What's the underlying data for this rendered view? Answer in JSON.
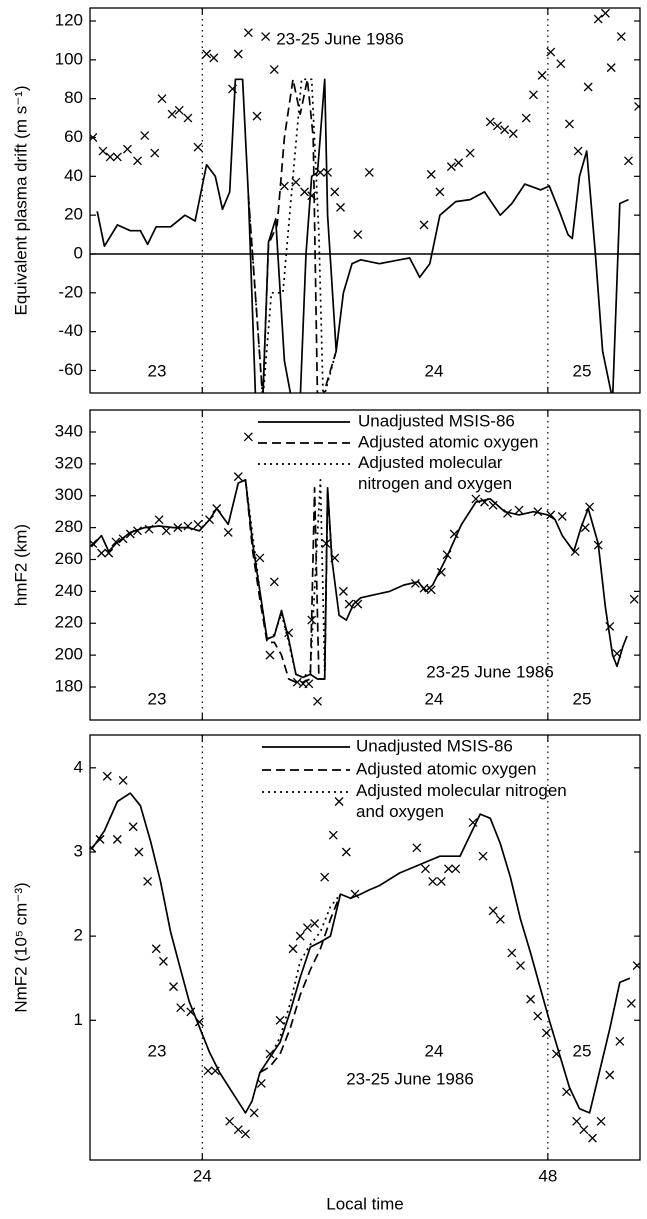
{
  "chart_data": [
    {
      "type": "line",
      "ylabel": "Equivalent plasma drift (m s⁻¹)",
      "xlim": [
        16.2,
        54.4
      ],
      "xticks": [
        24,
        48
      ],
      "xtick_labels": false,
      "ylim": [
        -71.6,
        126.7
      ],
      "yticks": [
        -60,
        -40,
        -20,
        0,
        20,
        40,
        60,
        80,
        100,
        120
      ],
      "hline": 0,
      "annotations": [
        "23-25 June 1986",
        "23",
        "24",
        "25"
      ],
      "series": [
        {
          "style": "solid",
          "color": "#000000",
          "x": [
            16.7,
            17.2,
            18.1,
            19.0,
            19.7,
            20.2,
            20.8,
            21.8,
            22.8,
            23.5,
            24.3,
            24.9,
            25.4,
            25.9,
            26.3,
            26.8,
            27.2,
            27.7,
            28.2,
            28.6,
            29.1,
            29.7,
            30.2,
            30.8,
            31.2,
            31.6,
            32.0,
            32.5,
            32.7,
            33.3,
            33.8,
            34.4,
            35.0,
            36.3,
            37.7,
            38.4,
            39.1,
            39.8,
            40.5,
            41.6,
            42.6,
            43.6,
            44.7,
            45.5,
            46.4,
            47.5,
            48.1,
            48.8,
            49.4,
            49.7,
            50.2,
            50.7,
            51.3,
            51.8,
            52.5,
            53.0,
            53.6
          ],
          "values": [
            22,
            4,
            15,
            12,
            12,
            5,
            14,
            14,
            20,
            17,
            46,
            40,
            23,
            32,
            90,
            90,
            30,
            -75,
            -75,
            6,
            18,
            -55,
            -75,
            -75,
            0,
            40,
            42,
            90,
            20,
            -50,
            -20,
            -5,
            -3,
            -5,
            -3,
            -2,
            -12,
            -5,
            20,
            27,
            28,
            32,
            20,
            26,
            36,
            33,
            35,
            22,
            10,
            8,
            40,
            53,
            0,
            -50,
            -75,
            26,
            28
          ]
        },
        {
          "style": "dashed",
          "color": "#000000",
          "x": [
            27.2,
            28.2,
            28.6,
            29.2,
            29.7,
            30.3,
            30.8,
            31.3,
            31.7,
            32.0,
            32.3,
            33.3
          ],
          "values": [
            30,
            -75,
            5,
            15,
            60,
            90,
            72,
            90,
            60,
            -75,
            -75,
            -50
          ]
        },
        {
          "style": "dotted",
          "color": "#000000",
          "x": [
            27.2,
            28.2,
            28.8,
            29.6,
            30.3,
            30.9,
            31.6,
            32.1,
            32.4,
            33.3
          ],
          "values": [
            30,
            -75,
            -20,
            -20,
            40,
            90,
            90,
            10,
            -75,
            -50
          ]
        }
      ],
      "points": {
        "color": "#000000",
        "x": [
          16.4,
          17.1,
          17.6,
          18.1,
          18.8,
          19.5,
          20.0,
          20.7,
          21.2,
          21.9,
          22.4,
          23.0,
          23.7,
          24.3,
          24.8,
          26.1,
          26.5,
          27.2,
          27.8,
          28.4,
          29.0,
          29.7,
          30.5,
          31.1,
          31.6,
          32.2,
          32.7,
          33.2,
          33.6,
          34.8,
          35.6,
          39.4,
          39.9,
          40.5,
          41.3,
          41.8,
          42.6,
          44.0,
          44.5,
          45.0,
          45.6,
          46.5,
          47.0,
          47.6,
          48.2,
          48.9,
          49.5,
          50.1,
          50.8,
          51.5,
          52.0,
          52.4,
          53.1,
          53.6,
          54.3
        ],
        "values": [
          60,
          53,
          50,
          50,
          54,
          48,
          61,
          52,
          80,
          72,
          74,
          70,
          55,
          103,
          101,
          85,
          103,
          114,
          71,
          112,
          95,
          35,
          37,
          32,
          30,
          42,
          42,
          32,
          24,
          10,
          42,
          15,
          41,
          32,
          45,
          47,
          52,
          68,
          66,
          64,
          62,
          70,
          82,
          92,
          104,
          98,
          67,
          53,
          86,
          121,
          124,
          96,
          112,
          48,
          76
        ]
      }
    },
    {
      "type": "line",
      "ylabel": "hmF2 (km)",
      "xlim": [
        16.2,
        54.4
      ],
      "xticks": [
        24,
        48
      ],
      "xtick_labels": false,
      "ylim": [
        159.3,
        353.8
      ],
      "yticks": [
        180,
        200,
        220,
        240,
        260,
        280,
        300,
        320,
        340
      ],
      "legend": "upper right",
      "annotations": [
        "23-25 June 1986",
        "23",
        "24",
        "25"
      ],
      "series": [
        {
          "name": "Unadjusted MSIS-86",
          "style": "solid",
          "color": "#000000",
          "x": [
            16.3,
            17,
            17.5,
            18,
            19,
            20,
            21,
            22,
            23,
            23.8,
            24.5,
            25,
            25.8,
            26.5,
            27,
            27.5,
            28,
            28.5,
            29,
            29.5,
            30,
            30.5,
            31,
            31.5,
            32,
            32.5,
            32.7,
            33,
            33.5,
            34,
            34.5,
            35,
            36,
            37,
            38,
            39,
            39.5,
            40,
            41,
            42,
            43,
            44,
            45,
            46,
            47,
            48,
            48.5,
            49,
            49.8,
            50.3,
            50.8,
            51.5,
            52,
            52.5,
            52.8,
            53.2,
            53.5
          ],
          "values": [
            268,
            275,
            265,
            270,
            277,
            280,
            281,
            280,
            280,
            278,
            285,
            292,
            282,
            308,
            310,
            270,
            240,
            210,
            212,
            228,
            210,
            188,
            186,
            188,
            185,
            185,
            305,
            260,
            225,
            222,
            232,
            236,
            238,
            240,
            244,
            246,
            240,
            244,
            262,
            282,
            296,
            298,
            290,
            288,
            290,
            288,
            285,
            275,
            265,
            280,
            292,
            270,
            230,
            200,
            193,
            205,
            212
          ]
        },
        {
          "name": "Adjusted atomic oxygen",
          "style": "dashed",
          "color": "#000000",
          "x": [
            27,
            27.5,
            28,
            28.5,
            29,
            29.5,
            30,
            30.5,
            31,
            31.5,
            31.8,
            32.1,
            32.5,
            32.7,
            33
          ],
          "values": [
            310,
            265,
            235,
            208,
            208,
            200,
            185,
            183,
            183,
            185,
            305,
            185,
            185,
            303,
            260
          ]
        },
        {
          "name": "Adjusted molecular\nnitrogen and oxygen",
          "style": "dotted",
          "color": "#000000",
          "x": [
            27,
            28,
            28.5,
            29,
            29.5,
            30,
            30.5,
            31,
            31.5,
            32.2,
            32.5,
            32.7,
            33
          ],
          "values": [
            310,
            240,
            210,
            213,
            226,
            208,
            188,
            186,
            190,
            310,
            190,
            303,
            262
          ]
        }
      ],
      "points": {
        "color": "#000000",
        "x": [
          16.4,
          17,
          17.5,
          18,
          18.5,
          19,
          19.5,
          20.3,
          21,
          21.5,
          22.3,
          23,
          23.7,
          24.5,
          25,
          25.8,
          26.5,
          27.2,
          28,
          28.7,
          29,
          30,
          30.6,
          31,
          31.4,
          31.6,
          32,
          32.6,
          33.2,
          33.8,
          34.2,
          34.8,
          38.8,
          39.4,
          39.9,
          40.6,
          41,
          41.5,
          43,
          43.6,
          44.2,
          45.2,
          46,
          47.3,
          48.2,
          49,
          49.9,
          50.6,
          50.9,
          51.5,
          52.3,
          52.8,
          54
        ],
        "values": [
          270,
          264,
          264,
          271,
          273,
          276,
          278,
          279,
          285,
          278,
          280,
          281,
          282,
          285,
          292,
          277,
          312,
          337,
          261,
          200,
          246,
          214,
          183,
          182,
          182,
          222,
          171,
          270,
          261,
          240,
          232,
          232,
          245,
          242,
          241,
          252,
          263,
          276,
          298,
          296,
          294,
          289,
          291,
          290,
          288,
          287,
          265,
          280,
          293,
          269,
          218,
          201,
          235
        ]
      }
    },
    {
      "type": "line",
      "ylabel": "NmF2 (10⁵ cm⁻³)",
      "xlabel": "Local time",
      "xlim": [
        16.2,
        54.4
      ],
      "xticks": [
        24,
        48
      ],
      "xtick_labels": true,
      "ylim": [
        -0.66,
        4.39
      ],
      "yticks": [
        1,
        2,
        3,
        4
      ],
      "legend": "upper right",
      "annotations": [
        "23",
        "24",
        "25",
        "23-25 June 1986"
      ],
      "series": [
        {
          "name": "Unadjusted MSIS-86",
          "style": "solid",
          "color": "#000000",
          "x": [
            16.3,
            17.2,
            18.1,
            19.0,
            19.7,
            20.4,
            21.1,
            21.8,
            22.45,
            23.1,
            23.8,
            24.5,
            25.2,
            26.1,
            27.0,
            27.45,
            28.0,
            28.7,
            29.4,
            30.1,
            30.8,
            31.5,
            32.2,
            32.9,
            33.6,
            34.3,
            35.0,
            35.6,
            36.3,
            37.7,
            39.1,
            40.5,
            41.9,
            42.6,
            43.3,
            44.0,
            44.7,
            45.4,
            46.1,
            46.8,
            47.45,
            48.1,
            48.8,
            49.5,
            50.2,
            50.9,
            51.6,
            52.3,
            53.0,
            53.7
          ],
          "values": [
            3.03,
            3.25,
            3.6,
            3.7,
            3.55,
            3.13,
            2.65,
            2.05,
            1.63,
            1.22,
            0.92,
            0.62,
            0.38,
            0.14,
            -0.1,
            0.04,
            0.38,
            0.56,
            0.74,
            1.1,
            1.51,
            1.87,
            1.93,
            2.0,
            2.5,
            2.45,
            2.5,
            2.55,
            2.6,
            2.75,
            2.85,
            2.95,
            2.95,
            3.2,
            3.45,
            3.4,
            3.1,
            2.7,
            2.2,
            1.8,
            1.4,
            1.0,
            0.6,
            0.2,
            -0.05,
            -0.1,
            0.4,
            0.9,
            1.45,
            1.5
          ]
        },
        {
          "name": "Adjusted atomic oxygen",
          "style": "dashed",
          "color": "#000000",
          "x": [
            28.0,
            28.7,
            29.4,
            30.1,
            30.8,
            31.5,
            32.2,
            32.9,
            33.6
          ],
          "values": [
            0.38,
            0.45,
            0.6,
            0.9,
            1.3,
            1.6,
            1.85,
            2.2,
            2.5
          ]
        },
        {
          "name": "Adjusted molecular nitrogen\nand oxygen",
          "style": "dotted",
          "color": "#000000",
          "x": [
            28.7,
            29.4,
            30.1,
            30.8,
            31.5,
            32.2,
            32.9,
            33.6
          ],
          "values": [
            0.56,
            0.8,
            1.2,
            1.7,
            1.9,
            2.05,
            2.35,
            2.5
          ]
        }
      ],
      "points": {
        "color": "#000000",
        "x": [
          16.3,
          16.9,
          17.4,
          18.1,
          18.5,
          19.2,
          19.6,
          20.2,
          20.8,
          21.3,
          22.0,
          22.5,
          23.2,
          23.8,
          24.4,
          24.9,
          25.9,
          26.5,
          27.0,
          27.6,
          28.1,
          28.7,
          29.4,
          30.3,
          30.8,
          31.3,
          31.8,
          32.5,
          33.1,
          33.5,
          34.0,
          34.6,
          38.9,
          39.5,
          40.0,
          40.6,
          41.1,
          41.6,
          42.8,
          43.5,
          44.2,
          44.7,
          45.5,
          46.1,
          46.8,
          47.3,
          47.9,
          48.6,
          49.3,
          50.0,
          50.5,
          51.1,
          51.7,
          52.3,
          53.0,
          53.8,
          54.2
        ],
        "values": [
          3.05,
          3.15,
          3.9,
          3.15,
          3.85,
          3.3,
          3.0,
          2.65,
          1.85,
          1.7,
          1.4,
          1.15,
          1.1,
          0.98,
          0.4,
          0.4,
          -0.2,
          -0.3,
          -0.35,
          -0.1,
          0.25,
          0.6,
          1.0,
          1.85,
          2.0,
          2.1,
          2.15,
          2.7,
          3.2,
          3.6,
          3.0,
          2.5,
          3.05,
          2.8,
          2.65,
          2.65,
          2.8,
          2.8,
          3.35,
          2.95,
          2.3,
          2.2,
          1.8,
          1.65,
          1.25,
          1.05,
          0.85,
          0.6,
          0.15,
          -0.2,
          -0.3,
          -0.4,
          -0.2,
          0.35,
          0.75,
          1.2,
          1.65
        ]
      }
    }
  ]
}
